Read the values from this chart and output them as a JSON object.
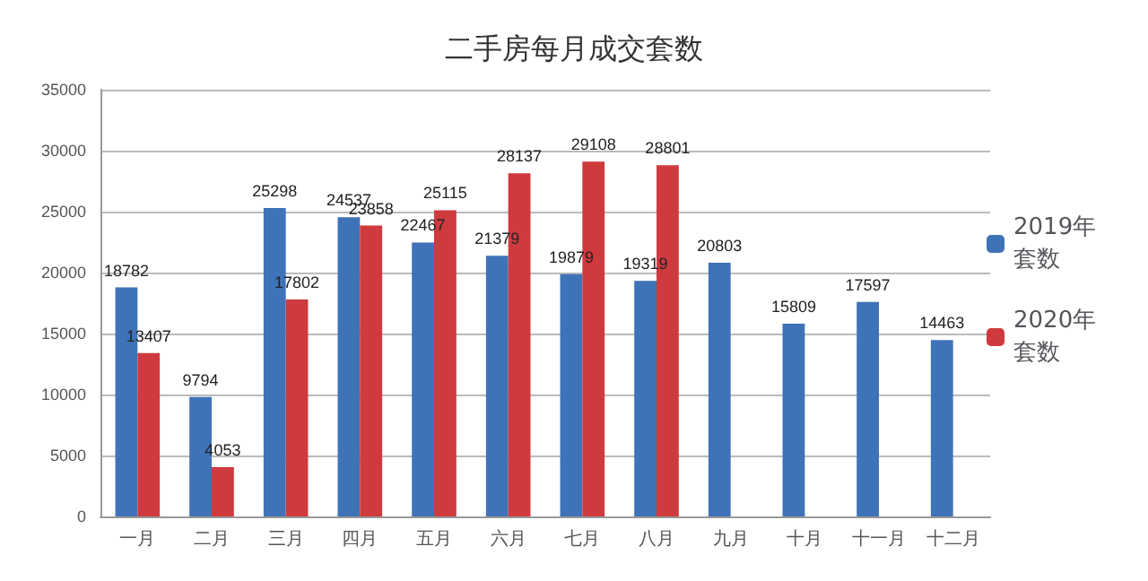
{
  "chart_data": {
    "type": "bar",
    "title": "二手房每月成交套数",
    "categories": [
      "一月",
      "二月",
      "三月",
      "四月",
      "五月",
      "六月",
      "七月",
      "八月",
      "九月",
      "十月",
      "十一月",
      "十二月"
    ],
    "series": [
      {
        "name": "2019年套数",
        "color": "#3f73b8",
        "values": [
          18782,
          9794,
          25298,
          24537,
          22467,
          21379,
          19879,
          19319,
          20803,
          15809,
          17597,
          14463
        ]
      },
      {
        "name": "2020年套数",
        "color": "#cf3a3e",
        "values": [
          13407,
          4053,
          17802,
          23858,
          25115,
          28137,
          29108,
          28801,
          null,
          null,
          null,
          null
        ]
      }
    ],
    "ylim": [
      0,
      35000
    ],
    "yticks": [
      0,
      5000,
      10000,
      15000,
      20000,
      25000,
      30000,
      35000
    ],
    "grid": "y",
    "legend": "right",
    "data_labels": true
  }
}
